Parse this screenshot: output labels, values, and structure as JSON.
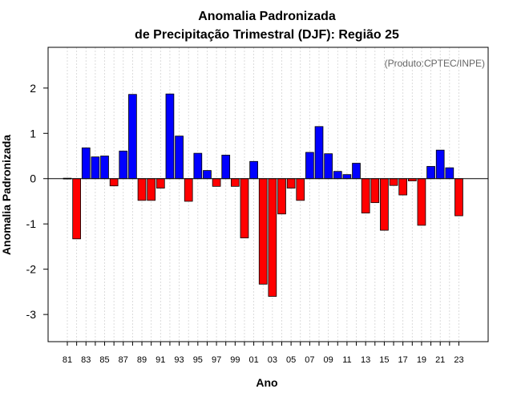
{
  "chart_data": {
    "type": "bar",
    "title": "Anomalia Padronizada",
    "subtitle": "de Precipitação Trimestral (DJF): Região 25",
    "xlabel": "Ano",
    "ylabel": "Anomalia Padronizada",
    "credit": "(Produto:CPTEC/INPE)",
    "ylim": [
      -3.6,
      2.9
    ],
    "yticks": [
      "-3",
      "-2",
      "-1",
      "0",
      "1",
      "2"
    ],
    "categories": [
      "81",
      "82",
      "83",
      "84",
      "85",
      "86",
      "87",
      "88",
      "89",
      "90",
      "91",
      "92",
      "93",
      "94",
      "95",
      "96",
      "97",
      "98",
      "99",
      "00",
      "01",
      "02",
      "03",
      "04",
      "05",
      "06",
      "07",
      "08",
      "09",
      "10",
      "11",
      "12",
      "13",
      "14",
      "15",
      "16",
      "17",
      "18",
      "19",
      "20",
      "21",
      "22",
      "23"
    ],
    "xtick_labels": [
      "81",
      "83",
      "85",
      "87",
      "89",
      "91",
      "93",
      "95",
      "97",
      "99",
      "01",
      "03",
      "05",
      "07",
      "09",
      "11",
      "13",
      "15",
      "17",
      "19",
      "21",
      "23"
    ],
    "values": [
      0.01,
      -1.33,
      0.68,
      0.48,
      0.5,
      -0.16,
      0.61,
      1.86,
      -0.48,
      -0.48,
      -0.21,
      1.87,
      0.94,
      -0.5,
      0.56,
      0.18,
      -0.17,
      0.52,
      -0.17,
      -1.31,
      0.38,
      -2.33,
      -2.6,
      -0.78,
      -0.21,
      -0.48,
      0.58,
      1.15,
      0.55,
      0.16,
      0.09,
      0.34,
      -0.76,
      -0.53,
      -1.14,
      -0.15,
      -0.36,
      -0.05,
      -1.03,
      0.27,
      0.63,
      0.24,
      -0.82
    ],
    "colors": {
      "positive": "#0000ff",
      "negative": "#ff0000"
    },
    "grid": true
  }
}
